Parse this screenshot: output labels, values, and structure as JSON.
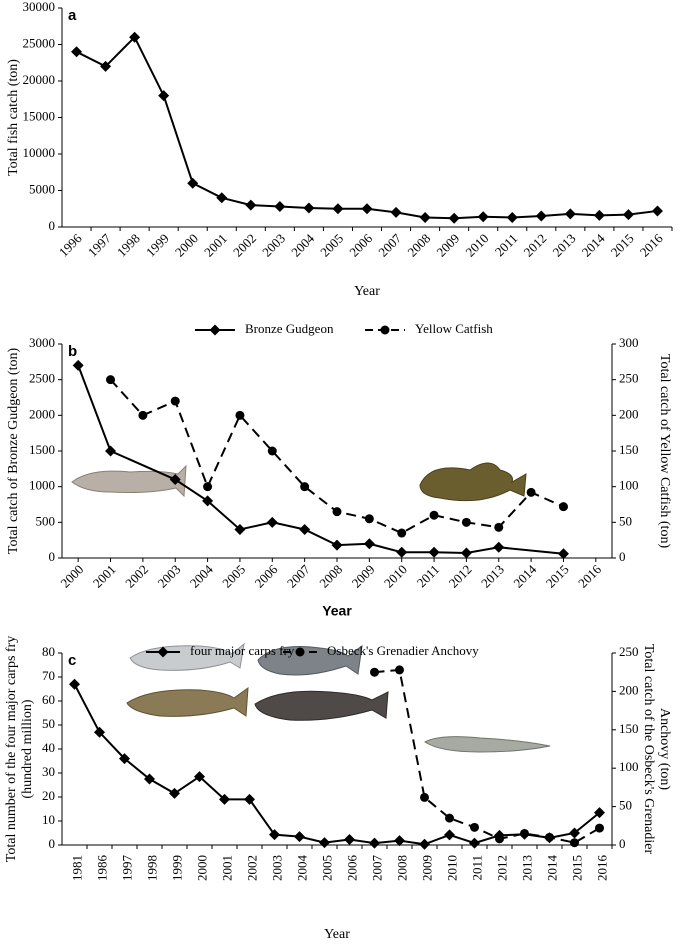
{
  "chart_data": [
    {
      "type": "line",
      "label": "a",
      "categories": [
        "1996",
        "1997",
        "1998",
        "1999",
        "2000",
        "2001",
        "2002",
        "2003",
        "2004",
        "2005",
        "2006",
        "2007",
        "2008",
        "2009",
        "2010",
        "2011",
        "2012",
        "2013",
        "2014",
        "2015",
        "2016"
      ],
      "series": [
        {
          "color": "#000000",
          "marker": "diamond",
          "dash": false,
          "values": [
            24000,
            22000,
            26000,
            18000,
            6000,
            4000,
            3000,
            2800,
            2600,
            2500,
            2500,
            2000,
            1300,
            1200,
            1400,
            1300,
            1500,
            1800,
            1600,
            1700,
            2200
          ]
        }
      ],
      "ylim": [
        0,
        30000
      ],
      "yticks": [
        0,
        5000,
        10000,
        15000,
        20000,
        25000,
        30000
      ],
      "y_label": [
        "Total fish catch (ton)"
      ],
      "x_label": "Year"
    },
    {
      "type": "line",
      "label": "b",
      "xlim": [
        1999.5,
        2016.5
      ],
      "xticks": [
        2000,
        2001,
        2002,
        2003,
        2004,
        2005,
        2006,
        2007,
        2008,
        2009,
        2010,
        2011,
        2012,
        2013,
        2014,
        2015,
        2016
      ],
      "series": [
        {
          "name": "Bronze Gudgeon",
          "color": "#000000",
          "marker": "diamond",
          "dash": false,
          "x": [
            2000,
            2001,
            2003,
            2004,
            2005,
            2006,
            2007,
            2008,
            2009,
            2010,
            2011,
            2012,
            2013,
            2015
          ],
          "values": [
            2700,
            1500,
            1100,
            800,
            400,
            500,
            400,
            180,
            200,
            80,
            80,
            70,
            150,
            60
          ]
        },
        {
          "name": "Yellow Catfish",
          "color": "#000000",
          "marker": "circle",
          "dash": true,
          "axis": "y2",
          "x": [
            2001,
            2002,
            2003,
            2004,
            2005,
            2006,
            2007,
            2008,
            2009,
            2010,
            2011,
            2012,
            2013,
            2014,
            2015
          ],
          "values": [
            250,
            200,
            220,
            100,
            200,
            150,
            100,
            65,
            55,
            35,
            60,
            50,
            43,
            92,
            72
          ]
        }
      ],
      "ylim": [
        0,
        3000
      ],
      "yticks": [
        0,
        500,
        1000,
        1500,
        2000,
        2500,
        3000
      ],
      "y2lim": [
        0,
        300
      ],
      "y2ticks": [
        0,
        50,
        100,
        150,
        200,
        250,
        300
      ],
      "y_label": [
        "Total catch of Bronze Gudgeon (ton)"
      ],
      "y2_label": [
        "Total catch of Yellow Catfish (ton)"
      ],
      "x_label": "Year"
    },
    {
      "type": "line",
      "label": "c",
      "categories": [
        "1981",
        "1986",
        "1997",
        "1998",
        "1999",
        "2000",
        "2001",
        "2002",
        "2003",
        "2004",
        "2005",
        "2006",
        "2007",
        "2008",
        "2009",
        "2010",
        "2011",
        "2012",
        "2013",
        "2014",
        "2015",
        "2016"
      ],
      "series": [
        {
          "name": "four major carps fry",
          "color": "#000000",
          "marker": "diamond",
          "dash": false,
          "values": [
            67,
            47,
            36,
            27.5,
            21.5,
            28.5,
            19,
            19,
            4.3,
            3.5,
            1,
            2.3,
            0.8,
            1.8,
            0.3,
            4.2,
            0.8,
            4,
            4.5,
            3,
            5,
            13.5
          ]
        },
        {
          "name": "Osbeck's Grenadier Anchovy",
          "color": "#000000",
          "marker": "circle",
          "dash": true,
          "axis": "y2",
          "values": [
            null,
            null,
            null,
            null,
            null,
            null,
            null,
            null,
            null,
            null,
            null,
            null,
            225,
            228,
            62,
            35,
            23,
            8,
            15,
            10,
            3,
            22
          ]
        }
      ],
      "ylim": [
        0,
        80
      ],
      "yticks": [
        0,
        10,
        20,
        30,
        40,
        50,
        60,
        70,
        80
      ],
      "y2lim": [
        0,
        250
      ],
      "y2ticks": [
        0,
        50,
        100,
        150,
        200,
        250
      ],
      "y_label": [
        "Total number of the four major carps fry",
        "(hundred million)"
      ],
      "y2_label": [
        "Total catch of the Osbeck's Grenadier",
        "Anchovy (ton)"
      ],
      "x_label": "Year"
    }
  ]
}
